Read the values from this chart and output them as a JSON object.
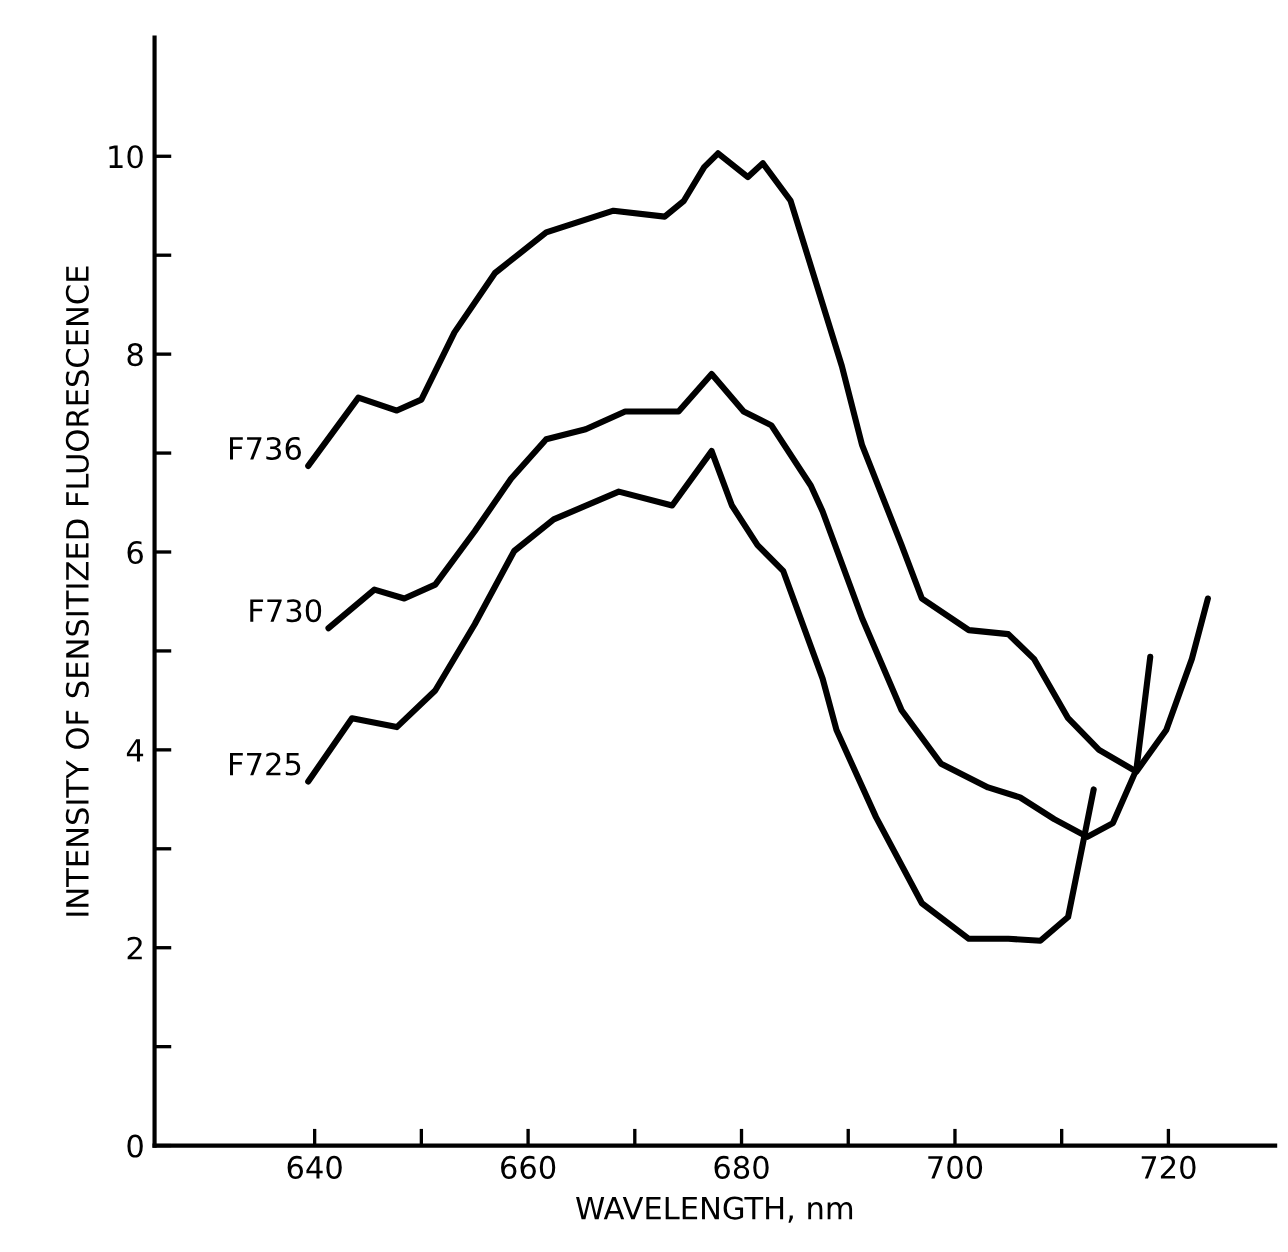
{
  "chart_data": {
    "type": "line",
    "xlabel": "WAVELENGTH, nm",
    "ylabel": "INTENSITY OF SENSITIZED FLUORESCENCE",
    "xlim": [
      625,
      730
    ],
    "ylim": [
      0,
      11.2
    ],
    "xticks": [
      640,
      {
        "value": 650,
        "label": null
      },
      660,
      {
        "value": 670,
        "label": null
      },
      680,
      {
        "value": 690,
        "label": null
      },
      700,
      {
        "value": 710,
        "label": null
      },
      720
    ],
    "yticks": [
      0,
      {
        "value": 1,
        "label": null
      },
      2,
      {
        "value": 3,
        "label": null
      },
      4,
      {
        "value": 5,
        "label": null
      },
      6,
      {
        "value": 7,
        "label": null
      },
      8,
      {
        "value": 9,
        "label": null
      },
      10
    ],
    "grid": false,
    "legend": false,
    "marker": "none",
    "line_style": "solid",
    "series": [
      {
        "name": "F736",
        "color": "#000000",
        "x": [
          639.4,
          644.1,
          647.7,
          650,
          653.1,
          656.9,
          661.7,
          668,
          672.8,
          674.6,
          676.5,
          677.8,
          680.6,
          682,
          684.6,
          689.4,
          691.3,
          695,
          696.9,
          701.3,
          705,
          707.4,
          710.6,
          713.5,
          717,
          719.8,
          722.2,
          723.7
        ],
        "values": [
          6.87,
          7.56,
          7.43,
          7.54,
          8.22,
          8.82,
          9.23,
          9.45,
          9.39,
          9.55,
          9.89,
          10.03,
          9.79,
          9.93,
          9.55,
          7.88,
          7.08,
          6.07,
          5.53,
          5.21,
          5.17,
          4.92,
          4.32,
          4.0,
          3.78,
          4.2,
          4.92,
          5.53
        ]
      },
      {
        "name": "F730",
        "color": "#000000",
        "x": [
          641.3,
          645.6,
          648.4,
          651.3,
          655,
          658.4,
          661.7,
          665.4,
          669.1,
          674.1,
          677.2,
          680.2,
          682.8,
          686.5,
          687.6,
          691.3,
          695,
          698.7,
          703.1,
          706.1,
          709.3,
          712.4,
          714.8,
          717,
          718.3
        ],
        "values": [
          5.23,
          5.62,
          5.53,
          5.67,
          6.21,
          6.74,
          7.14,
          7.24,
          7.42,
          7.42,
          7.8,
          7.42,
          7.28,
          6.67,
          6.41,
          5.33,
          4.4,
          3.86,
          3.62,
          3.52,
          3.3,
          3.12,
          3.26,
          3.8,
          4.94
        ]
      },
      {
        "name": "F725",
        "color": "#000000",
        "x": [
          639.4,
          643.5,
          647.7,
          651.3,
          655,
          658.7,
          662.4,
          668.5,
          673.5,
          677.2,
          679.1,
          681.5,
          683.9,
          687.6,
          688.9,
          692.6,
          696.9,
          701.3,
          705,
          708,
          710.6,
          712,
          713
        ],
        "values": [
          3.68,
          4.32,
          4.23,
          4.6,
          5.27,
          6.01,
          6.33,
          6.61,
          6.47,
          7.02,
          6.47,
          6.07,
          5.81,
          4.72,
          4.2,
          3.32,
          2.45,
          2.09,
          2.09,
          2.07,
          2.31,
          3.06,
          3.6
        ]
      }
    ]
  }
}
